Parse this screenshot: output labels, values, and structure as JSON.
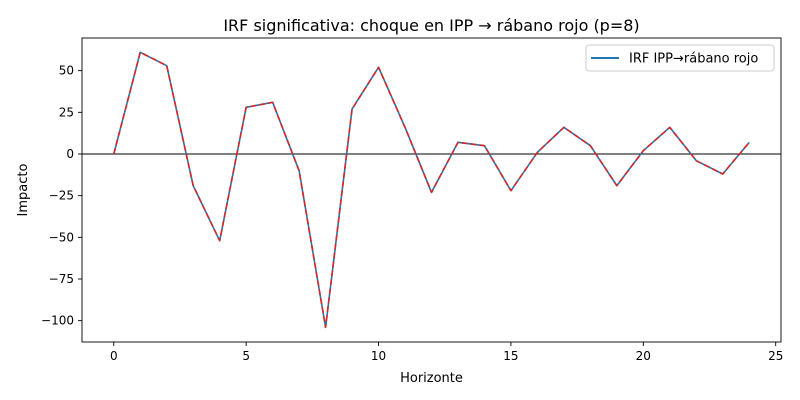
{
  "chart_data": {
    "type": "line",
    "title": "IRF significativa: choque en IPP → rábano rojo (p=8)",
    "xlabel": "Horizonte",
    "ylabel": "Impacto",
    "xlim": [
      -1.2,
      25.2
    ],
    "ylim": [
      -112.8,
      69.6
    ],
    "xticks": [
      0,
      5,
      10,
      15,
      20,
      25
    ],
    "yticks": [
      -100,
      -75,
      -50,
      -25,
      0,
      25,
      50
    ],
    "grid": false,
    "legend_position": "top-right",
    "reference_line_y": 0,
    "x": [
      0,
      1,
      2,
      3,
      4,
      5,
      6,
      7,
      8,
      9,
      10,
      11,
      12,
      13,
      14,
      15,
      16,
      17,
      18,
      19,
      20,
      21,
      22,
      23,
      24
    ],
    "series": [
      {
        "name": "IRF IPP→rábano rojo",
        "color": "#1f77b4",
        "style": "solid",
        "values": [
          0,
          61,
          53,
          -19,
          -52,
          28,
          31,
          -10,
          -104,
          27,
          52,
          16,
          -23,
          7,
          5,
          -22,
          1,
          16,
          5,
          -19,
          2,
          16,
          -4,
          -12,
          7
        ]
      },
      {
        "color": "#d62728",
        "style": "dashed",
        "values": [
          0,
          61,
          53,
          -19,
          -52,
          28,
          31,
          -10,
          -104,
          27,
          52,
          16,
          -23,
          7,
          5,
          -22,
          1,
          16,
          5,
          -19,
          2,
          16,
          -4,
          -12,
          7
        ]
      }
    ]
  }
}
